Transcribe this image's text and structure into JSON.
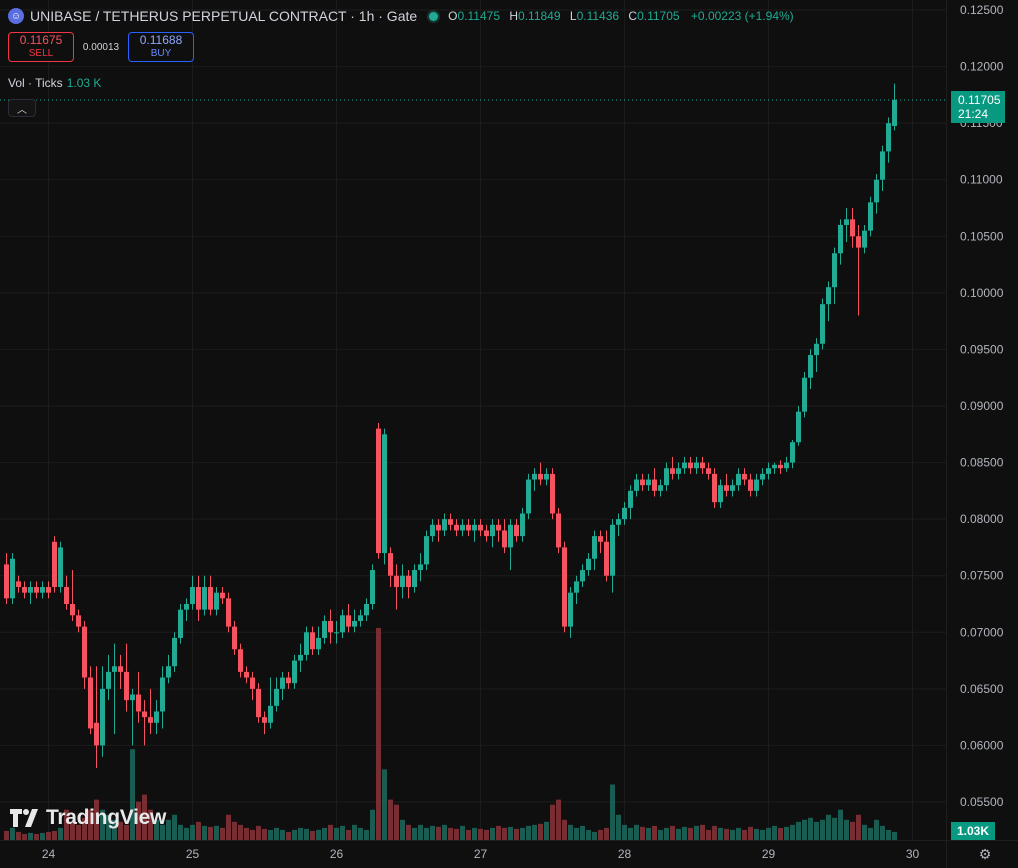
{
  "header": {
    "symbol_icon": "smiley-icon",
    "title": "UNIBASE / TETHERUS PERPETUAL CONTRACT · 1h · Gate",
    "ohlc": {
      "o_label": "O",
      "o": "0.11475",
      "h_label": "H",
      "h": "0.11849",
      "l_label": "L",
      "l": "0.11436",
      "c_label": "C",
      "c": "0.11705",
      "change": "+0.00223 (+1.94%)"
    }
  },
  "trade": {
    "sell_price": "0.11675",
    "sell_label": "SELL",
    "spread": "0.00013",
    "buy_price": "0.11688",
    "buy_label": "BUY"
  },
  "volume_legend": {
    "label": "Vol · Ticks",
    "value": "1.03 K"
  },
  "price_label": {
    "price": "0.11705",
    "countdown": "21:24"
  },
  "volume_label": "1.03K",
  "branding": "TradingView",
  "colors": {
    "up": "#22ab94",
    "down": "#f7525f",
    "background": "#0f0f0f",
    "grid": "#1c1c1c"
  },
  "chart_data": {
    "type": "candlestick",
    "y_axis": {
      "min": 0.055,
      "max": 0.125,
      "ticks": [
        "0.12500",
        "0.12000",
        "0.11500",
        "0.11000",
        "0.10500",
        "0.10000",
        "0.09500",
        "0.09000",
        "0.08500",
        "0.08000",
        "0.07500",
        "0.07000",
        "0.06500",
        "0.06000",
        "0.05500"
      ]
    },
    "x_axis": {
      "tick_labels": [
        "24",
        "25",
        "26",
        "27",
        "28",
        "29",
        "30"
      ],
      "tick_hours": [
        7,
        31,
        55,
        79,
        103,
        127,
        151
      ]
    },
    "grid": true,
    "last_price": 0.11705,
    "candles": [
      [
        0.076,
        0.077,
        0.0725,
        0.073,
        9
      ],
      [
        0.073,
        0.077,
        0.0725,
        0.0765,
        12
      ],
      [
        0.0745,
        0.075,
        0.0735,
        0.074,
        8
      ],
      [
        0.074,
        0.0745,
        0.073,
        0.0735,
        6
      ],
      [
        0.0735,
        0.0745,
        0.0725,
        0.074,
        7
      ],
      [
        0.074,
        0.0745,
        0.073,
        0.0735,
        6
      ],
      [
        0.0735,
        0.0745,
        0.073,
        0.074,
        7
      ],
      [
        0.074,
        0.0745,
        0.073,
        0.0735,
        8
      ],
      [
        0.078,
        0.0785,
        0.0735,
        0.074,
        9
      ],
      [
        0.074,
        0.078,
        0.0735,
        0.0775,
        12
      ],
      [
        0.074,
        0.075,
        0.072,
        0.0725,
        30
      ],
      [
        0.0725,
        0.0755,
        0.071,
        0.0715,
        18
      ],
      [
        0.0715,
        0.072,
        0.07,
        0.0705,
        15
      ],
      [
        0.0705,
        0.071,
        0.065,
        0.066,
        22
      ],
      [
        0.066,
        0.067,
        0.061,
        0.0615,
        30
      ],
      [
        0.062,
        0.067,
        0.058,
        0.06,
        40
      ],
      [
        0.06,
        0.067,
        0.059,
        0.065,
        30
      ],
      [
        0.065,
        0.068,
        0.064,
        0.0665,
        25
      ],
      [
        0.0665,
        0.069,
        0.061,
        0.067,
        20
      ],
      [
        0.067,
        0.068,
        0.065,
        0.0665,
        18
      ],
      [
        0.0665,
        0.069,
        0.063,
        0.064,
        15
      ],
      [
        0.064,
        0.065,
        0.06,
        0.0645,
        90
      ],
      [
        0.0645,
        0.0665,
        0.062,
        0.063,
        38
      ],
      [
        0.063,
        0.064,
        0.06,
        0.0625,
        45
      ],
      [
        0.0625,
        0.065,
        0.061,
        0.062,
        30
      ],
      [
        0.062,
        0.064,
        0.061,
        0.063,
        20
      ],
      [
        0.063,
        0.067,
        0.0615,
        0.066,
        15
      ],
      [
        0.066,
        0.068,
        0.0655,
        0.067,
        20
      ],
      [
        0.067,
        0.07,
        0.0665,
        0.0695,
        25
      ],
      [
        0.0695,
        0.0725,
        0.069,
        0.072,
        15
      ],
      [
        0.072,
        0.073,
        0.071,
        0.0725,
        12
      ],
      [
        0.0725,
        0.075,
        0.072,
        0.074,
        15
      ],
      [
        0.074,
        0.075,
        0.071,
        0.072,
        18
      ],
      [
        0.072,
        0.075,
        0.0715,
        0.074,
        14
      ],
      [
        0.074,
        0.075,
        0.0715,
        0.072,
        13
      ],
      [
        0.072,
        0.074,
        0.0715,
        0.0735,
        14
      ],
      [
        0.0735,
        0.074,
        0.0725,
        0.073,
        12
      ],
      [
        0.073,
        0.0735,
        0.07,
        0.0705,
        25
      ],
      [
        0.0705,
        0.071,
        0.068,
        0.0685,
        18
      ],
      [
        0.0685,
        0.069,
        0.066,
        0.0665,
        15
      ],
      [
        0.0665,
        0.067,
        0.0655,
        0.066,
        12
      ],
      [
        0.066,
        0.0665,
        0.064,
        0.065,
        10
      ],
      [
        0.065,
        0.0655,
        0.062,
        0.0625,
        14
      ],
      [
        0.0625,
        0.063,
        0.061,
        0.062,
        11
      ],
      [
        0.062,
        0.066,
        0.0615,
        0.0635,
        10
      ],
      [
        0.0635,
        0.066,
        0.063,
        0.065,
        12
      ],
      [
        0.065,
        0.0665,
        0.064,
        0.066,
        10
      ],
      [
        0.066,
        0.0665,
        0.065,
        0.0655,
        8
      ],
      [
        0.0655,
        0.068,
        0.065,
        0.0675,
        10
      ],
      [
        0.0675,
        0.069,
        0.0665,
        0.068,
        12
      ],
      [
        0.068,
        0.0705,
        0.0675,
        0.07,
        11
      ],
      [
        0.07,
        0.0705,
        0.068,
        0.0685,
        9
      ],
      [
        0.0685,
        0.0705,
        0.068,
        0.0695,
        10
      ],
      [
        0.0695,
        0.0715,
        0.069,
        0.071,
        12
      ],
      [
        0.071,
        0.072,
        0.069,
        0.07,
        15
      ],
      [
        0.07,
        0.071,
        0.069,
        0.07,
        12
      ],
      [
        0.07,
        0.072,
        0.0695,
        0.0715,
        14
      ],
      [
        0.0715,
        0.0725,
        0.07,
        0.0705,
        10
      ],
      [
        0.0705,
        0.072,
        0.07,
        0.071,
        15
      ],
      [
        0.071,
        0.072,
        0.0705,
        0.0715,
        12
      ],
      [
        0.0715,
        0.073,
        0.071,
        0.0725,
        10
      ],
      [
        0.0725,
        0.076,
        0.072,
        0.0755,
        30
      ],
      [
        0.088,
        0.0885,
        0.0765,
        0.077,
        210
      ],
      [
        0.077,
        0.088,
        0.076,
        0.0875,
        70
      ],
      [
        0.077,
        0.0775,
        0.074,
        0.075,
        40
      ],
      [
        0.075,
        0.076,
        0.072,
        0.074,
        35
      ],
      [
        0.074,
        0.076,
        0.073,
        0.075,
        20
      ],
      [
        0.075,
        0.0755,
        0.073,
        0.074,
        15
      ],
      [
        0.074,
        0.076,
        0.0735,
        0.0755,
        12
      ],
      [
        0.0755,
        0.077,
        0.0745,
        0.076,
        15
      ],
      [
        0.076,
        0.079,
        0.0755,
        0.0785,
        12
      ],
      [
        0.0785,
        0.08,
        0.078,
        0.0795,
        14
      ],
      [
        0.0795,
        0.08,
        0.078,
        0.079,
        13
      ],
      [
        0.079,
        0.0805,
        0.0785,
        0.08,
        15
      ],
      [
        0.08,
        0.0805,
        0.079,
        0.0795,
        12
      ],
      [
        0.0795,
        0.08,
        0.0785,
        0.079,
        11
      ],
      [
        0.079,
        0.08,
        0.0785,
        0.0795,
        14
      ],
      [
        0.0795,
        0.08,
        0.0785,
        0.079,
        10
      ],
      [
        0.079,
        0.08,
        0.078,
        0.0795,
        12
      ],
      [
        0.0795,
        0.08,
        0.0785,
        0.079,
        11
      ],
      [
        0.079,
        0.0795,
        0.078,
        0.0785,
        10
      ],
      [
        0.0785,
        0.08,
        0.0775,
        0.0795,
        12
      ],
      [
        0.0795,
        0.08,
        0.078,
        0.079,
        14
      ],
      [
        0.079,
        0.08,
        0.077,
        0.0775,
        12
      ],
      [
        0.0775,
        0.08,
        0.0755,
        0.0795,
        13
      ],
      [
        0.0795,
        0.08,
        0.078,
        0.0785,
        11
      ],
      [
        0.0785,
        0.081,
        0.078,
        0.0805,
        12
      ],
      [
        0.0805,
        0.084,
        0.08,
        0.0835,
        14
      ],
      [
        0.0835,
        0.0845,
        0.0825,
        0.084,
        15
      ],
      [
        0.084,
        0.085,
        0.083,
        0.0835,
        16
      ],
      [
        0.0835,
        0.0845,
        0.083,
        0.084,
        18
      ],
      [
        0.084,
        0.0845,
        0.08,
        0.0805,
        35
      ],
      [
        0.0805,
        0.081,
        0.077,
        0.0775,
        40
      ],
      [
        0.0775,
        0.078,
        0.07,
        0.0705,
        20
      ],
      [
        0.0705,
        0.074,
        0.0695,
        0.0735,
        15
      ],
      [
        0.0735,
        0.075,
        0.0725,
        0.0745,
        12
      ],
      [
        0.0745,
        0.076,
        0.074,
        0.0755,
        14
      ],
      [
        0.0755,
        0.077,
        0.075,
        0.0765,
        10
      ],
      [
        0.0765,
        0.079,
        0.0755,
        0.0785,
        8
      ],
      [
        0.0785,
        0.079,
        0.077,
        0.078,
        10
      ],
      [
        0.078,
        0.079,
        0.0745,
        0.075,
        12
      ],
      [
        0.075,
        0.08,
        0.0735,
        0.0795,
        55
      ],
      [
        0.0795,
        0.0805,
        0.0785,
        0.08,
        25
      ],
      [
        0.08,
        0.0815,
        0.0795,
        0.081,
        15
      ],
      [
        0.081,
        0.083,
        0.08,
        0.0825,
        12
      ],
      [
        0.0825,
        0.084,
        0.082,
        0.0835,
        15
      ],
      [
        0.0835,
        0.084,
        0.0825,
        0.083,
        13
      ],
      [
        0.083,
        0.084,
        0.0825,
        0.0835,
        12
      ],
      [
        0.0835,
        0.0845,
        0.082,
        0.0825,
        14
      ],
      [
        0.0825,
        0.0835,
        0.082,
        0.083,
        10
      ],
      [
        0.083,
        0.085,
        0.0825,
        0.0845,
        12
      ],
      [
        0.0845,
        0.0855,
        0.0835,
        0.084,
        14
      ],
      [
        0.084,
        0.085,
        0.0835,
        0.0845,
        11
      ],
      [
        0.0845,
        0.0855,
        0.084,
        0.085,
        13
      ],
      [
        0.085,
        0.0855,
        0.084,
        0.0845,
        12
      ],
      [
        0.0845,
        0.0855,
        0.084,
        0.085,
        14
      ],
      [
        0.085,
        0.0855,
        0.084,
        0.0845,
        15
      ],
      [
        0.0845,
        0.085,
        0.0835,
        0.084,
        10
      ],
      [
        0.084,
        0.0845,
        0.081,
        0.0815,
        14
      ],
      [
        0.0815,
        0.0835,
        0.081,
        0.083,
        12
      ],
      [
        0.083,
        0.084,
        0.082,
        0.0825,
        11
      ],
      [
        0.0825,
        0.0835,
        0.082,
        0.083,
        10
      ],
      [
        0.083,
        0.0845,
        0.0825,
        0.084,
        12
      ],
      [
        0.084,
        0.0845,
        0.083,
        0.0835,
        10
      ],
      [
        0.0835,
        0.084,
        0.082,
        0.0825,
        13
      ],
      [
        0.0825,
        0.084,
        0.082,
        0.0835,
        11
      ],
      [
        0.0835,
        0.0845,
        0.083,
        0.084,
        10
      ],
      [
        0.084,
        0.085,
        0.0835,
        0.0845,
        12
      ],
      [
        0.0845,
        0.085,
        0.084,
        0.0848,
        14
      ],
      [
        0.0848,
        0.0852,
        0.084,
        0.0845,
        12
      ],
      [
        0.0845,
        0.0855,
        0.0842,
        0.085,
        13
      ],
      [
        0.085,
        0.087,
        0.0845,
        0.0868,
        15
      ],
      [
        0.0868,
        0.09,
        0.0865,
        0.0895,
        18
      ],
      [
        0.0895,
        0.093,
        0.089,
        0.0925,
        20
      ],
      [
        0.0925,
        0.095,
        0.0915,
        0.0945,
        22
      ],
      [
        0.0945,
        0.096,
        0.093,
        0.0955,
        18
      ],
      [
        0.0955,
        0.0995,
        0.095,
        0.099,
        20
      ],
      [
        0.099,
        0.101,
        0.0975,
        0.1005,
        25
      ],
      [
        0.1005,
        0.104,
        0.099,
        0.1035,
        22
      ],
      [
        0.1035,
        0.1065,
        0.1025,
        0.106,
        30
      ],
      [
        0.106,
        0.1075,
        0.1045,
        0.1065,
        20
      ],
      [
        0.1065,
        0.1075,
        0.104,
        0.105,
        18
      ],
      [
        0.105,
        0.106,
        0.098,
        0.104,
        25
      ],
      [
        0.104,
        0.106,
        0.1035,
        0.1055,
        15
      ],
      [
        0.1055,
        0.1085,
        0.105,
        0.108,
        12
      ],
      [
        0.108,
        0.1105,
        0.107,
        0.11,
        20
      ],
      [
        0.11,
        0.113,
        0.109,
        0.1125,
        14
      ],
      [
        0.1125,
        0.1155,
        0.1115,
        0.115,
        10
      ],
      [
        0.11475,
        0.11849,
        0.11436,
        0.11705,
        8
      ]
    ]
  }
}
